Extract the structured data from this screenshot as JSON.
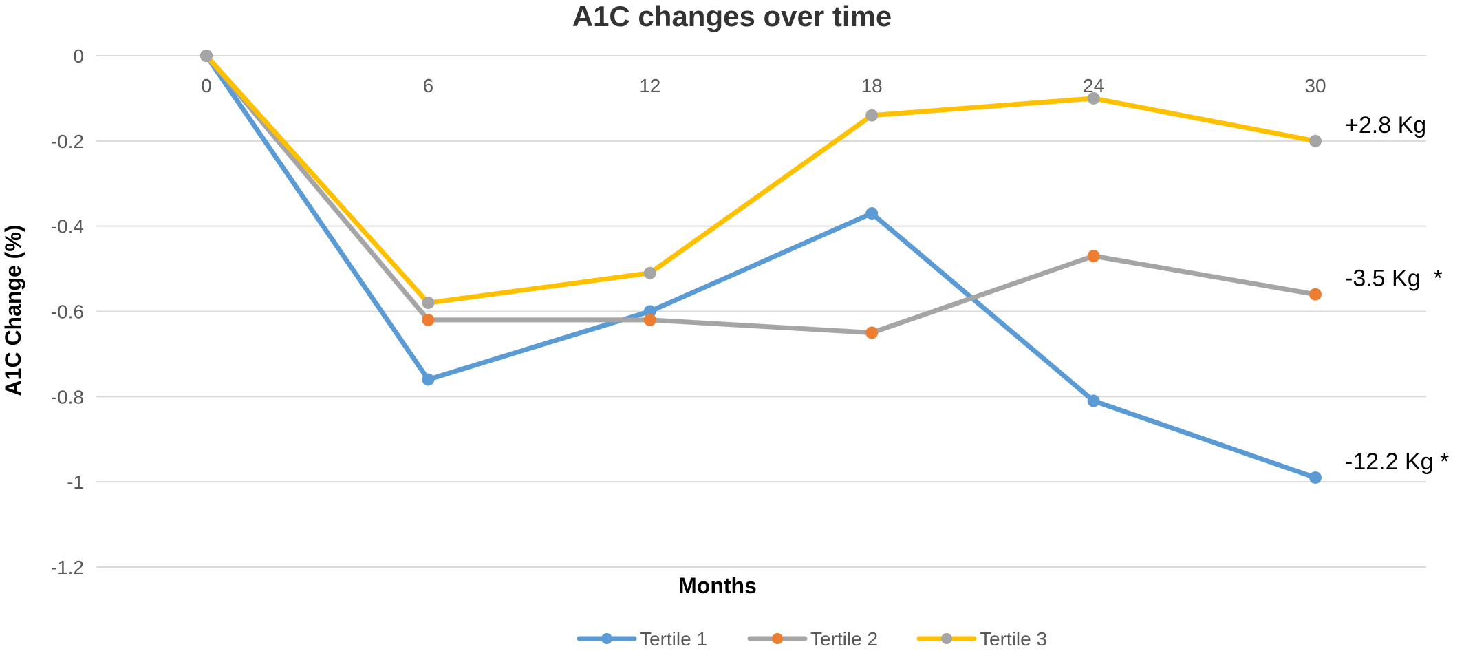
{
  "chart_data": {
    "type": "line",
    "title": "A1C changes over time",
    "xlabel": "Months",
    "ylabel": "A1C Change (%)",
    "x": [
      0,
      6,
      12,
      18,
      24,
      30
    ],
    "x_tick_labels": [
      "0",
      "6",
      "12",
      "18",
      "24",
      "30"
    ],
    "ylim": [
      -1.2,
      0
    ],
    "y_ticks": [
      0,
      -0.2,
      -0.4,
      -0.6,
      -0.8,
      -1,
      -1.2
    ],
    "y_tick_labels": [
      "0",
      "-0.2",
      "-0.4",
      "-0.6",
      "-0.8",
      "-1",
      "-1.2"
    ],
    "grid": true,
    "legend_position": "bottom",
    "series": [
      {
        "name": "Tertile 1",
        "line_color": "#5b9bd5",
        "marker_color": "#5b9bd5",
        "values": [
          0,
          -0.76,
          -0.6,
          -0.37,
          -0.81,
          -0.99
        ]
      },
      {
        "name": "Tertile 2",
        "line_color": "#a5a5a5",
        "marker_color": "#ed7d31",
        "values": [
          0,
          -0.62,
          -0.62,
          -0.65,
          -0.47,
          -0.56
        ]
      },
      {
        "name": "Tertile 3",
        "line_color": "#ffc000",
        "marker_color": "#a5a5a5",
        "values": [
          0,
          -0.58,
          -0.51,
          -0.14,
          -0.1,
          -0.2
        ]
      }
    ],
    "annotations": [
      {
        "text": "+2.8 Kg",
        "series": "Tertile 3"
      },
      {
        "text": "-3.5 Kg  *",
        "series": "Tertile 2"
      },
      {
        "text": "-12.2 Kg *",
        "series": "Tertile 1"
      }
    ]
  }
}
